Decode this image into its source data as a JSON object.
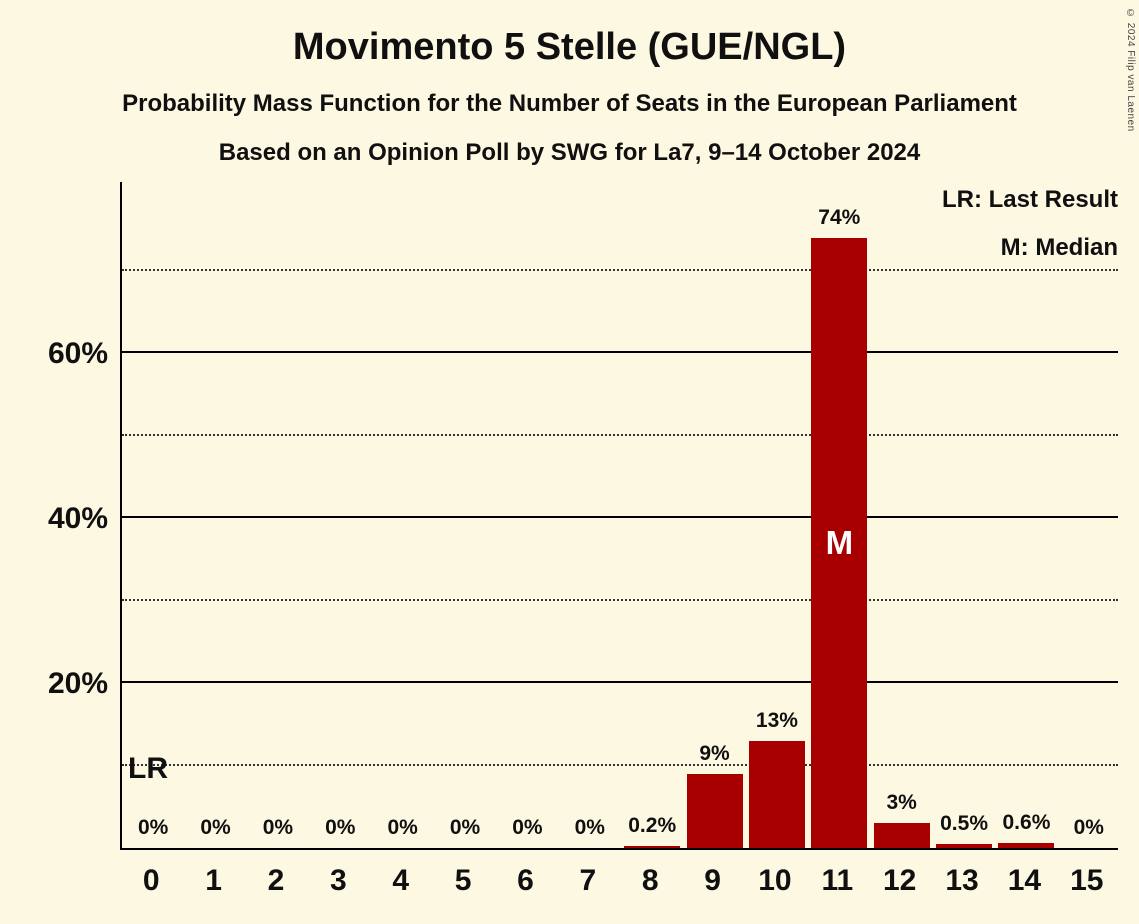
{
  "title": "Movimento 5 Stelle (GUE/NGL)",
  "subtitle": "Probability Mass Function for the Number of Seats in the European Parliament",
  "poll_line": "Based on an Opinion Poll by SWG for La7, 9–14 October 2024",
  "legend": {
    "last_result": "LR: Last Result",
    "median": "M: Median"
  },
  "copyright": "© 2024 Filip van Laenen",
  "colors": {
    "background": "#FDF8E2",
    "bar": "#A80000",
    "text": "#101010",
    "median_text": "#FFFFFF"
  },
  "chart_data": {
    "type": "bar",
    "title": "Movimento 5 Stelle (GUE/NGL)",
    "categories": [
      "0",
      "1",
      "2",
      "3",
      "4",
      "5",
      "6",
      "7",
      "8",
      "9",
      "10",
      "11",
      "12",
      "13",
      "14",
      "15"
    ],
    "values": [
      0,
      0,
      0,
      0,
      0,
      0,
      0,
      0,
      0.2,
      9,
      13,
      74,
      3,
      0.5,
      0.6,
      0
    ],
    "bar_labels": [
      "0%",
      "0%",
      "0%",
      "0%",
      "0%",
      "0%",
      "0%",
      "0%",
      "0.2%",
      "9%",
      "13%",
      "74%",
      "3%",
      "0.5%",
      "0.6%",
      "0%"
    ],
    "median_category": "11",
    "median_marker": "M",
    "last_result_marker": "LR",
    "ylim": [
      0,
      81
    ],
    "yticks": [
      20,
      40,
      60
    ],
    "ytick_labels": [
      "20%",
      "40%",
      "60%"
    ],
    "gridlines_solid": [
      20,
      40,
      60
    ],
    "gridlines_dotted": [
      10,
      30,
      50,
      70
    ],
    "legend_position": "top-right",
    "grid": true
  }
}
